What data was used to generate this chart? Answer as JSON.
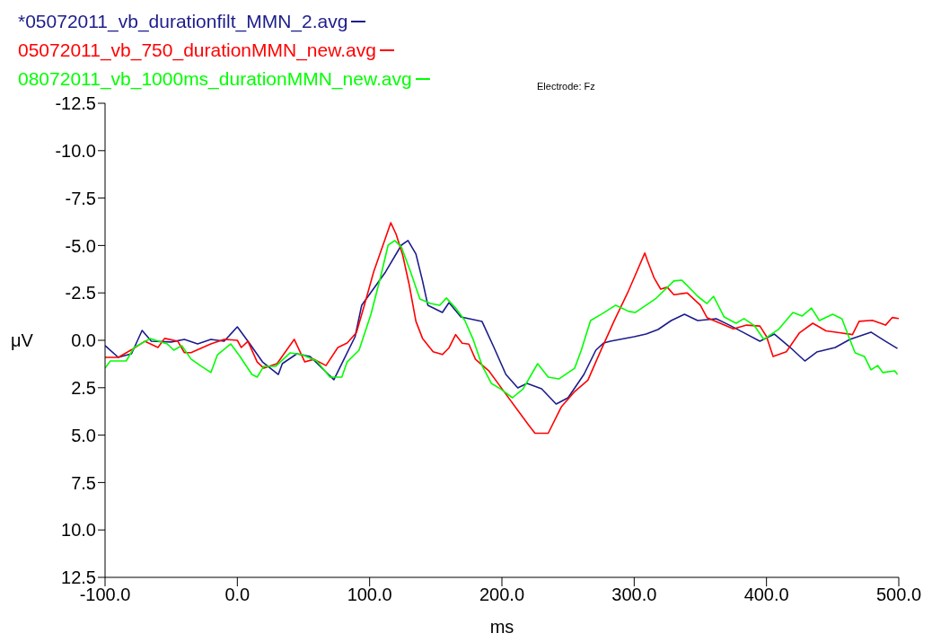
{
  "chart_data": {
    "type": "line",
    "xlabel": "ms",
    "ylabel": "μV",
    "legend": "top left",
    "marker": "none",
    "line_style": "solid",
    "grid": false,
    "annotations": [
      "Electrode: Fz"
    ],
    "xlim": [
      -100,
      500
    ],
    "xticks": [
      {
        "value": -100,
        "label": "-100.0"
      },
      {
        "value": 0,
        "label": "0.0"
      },
      {
        "value": 100,
        "label": "100.0"
      },
      {
        "value": 200,
        "label": "200.0"
      },
      {
        "value": 300,
        "label": "300.0"
      },
      {
        "value": 400,
        "label": "400.0"
      },
      {
        "value": 500,
        "label": "500.0"
      }
    ],
    "ylim": [
      12.5,
      -12.5
    ],
    "yticks": [
      -12.5,
      {
        "value": -10,
        "label": "-10.0"
      },
      -7.5,
      {
        "value": -5,
        "label": "-5.0"
      },
      -2.5,
      {
        "value": 0,
        "label": "0.0"
      },
      2.5,
      {
        "value": 5,
        "label": "5.0"
      },
      7.5,
      {
        "value": 10,
        "label": "10.0"
      },
      12.5
    ],
    "series": [
      {
        "name": "*05072011_vb_durationfilt_MMN_2.avg",
        "color": "#1c1c8c",
        "x": [
          -100,
          -90,
          -80,
          -72,
          -65,
          -50,
          -40,
          -30,
          -20,
          -10,
          0,
          9,
          19,
          31,
          34,
          45,
          55,
          64,
          73,
          79,
          89,
          94,
          112,
          124,
          129,
          135,
          140,
          144,
          155,
          160,
          169,
          185,
          194,
          203,
          212,
          219,
          230,
          241,
          250,
          262,
          271,
          277,
          282,
          300,
          309,
          318,
          328,
          338,
          348,
          362,
          372,
          382,
          395,
          406,
          418,
          429,
          438,
          452,
          463,
          479,
          490,
          499
        ],
        "values": [
          0.28,
          0.9,
          0.71,
          -0.52,
          0.05,
          0.09,
          -0.05,
          0.19,
          -0.05,
          0.05,
          -0.71,
          0.14,
          1.14,
          1.8,
          1.23,
          0.71,
          0.85,
          1.47,
          2.08,
          1.23,
          -0.19,
          -1.85,
          -3.6,
          -5.02,
          -5.26,
          -4.55,
          -3.13,
          -1.85,
          -1.47,
          -1.99,
          -1.23,
          -0.99,
          0.38,
          1.8,
          2.51,
          2.27,
          2.56,
          3.36,
          3.03,
          1.8,
          0.52,
          0.14,
          0.05,
          -0.19,
          -0.33,
          -0.57,
          -1.04,
          -1.37,
          -1.04,
          -1.14,
          -0.8,
          -0.43,
          0.05,
          -0.33,
          0.38,
          1.09,
          0.62,
          0.38,
          -0.05,
          -0.43,
          0.05,
          0.43
        ]
      },
      {
        "name": "05072011_vb_750_durationMMN_new.avg",
        "color": "#ff0000",
        "x": [
          -100,
          -90,
          -80,
          -70,
          -60,
          -55,
          -45,
          -40,
          -35,
          -20,
          -10,
          0,
          3,
          8,
          15,
          20,
          30,
          43,
          51,
          58,
          67,
          76,
          83,
          90,
          96,
          103,
          116,
          120,
          125,
          130,
          135,
          140,
          148,
          155,
          160,
          165,
          170,
          175,
          180,
          190,
          200,
          210,
          220,
          225,
          235,
          245,
          255,
          265,
          275,
          285,
          295,
          300,
          308,
          310,
          315,
          320,
          325,
          330,
          340,
          350,
          355,
          365,
          375,
          385,
          395,
          400,
          405,
          415,
          425,
          435,
          445,
          455,
          465,
          470,
          480,
          490,
          495,
          500
        ],
        "values": [
          0.9,
          0.9,
          0.5,
          0.05,
          0.38,
          -0.1,
          0.05,
          0.65,
          0.65,
          0.19,
          -0.05,
          0,
          0.38,
          0.05,
          1.14,
          1.47,
          1.23,
          -0.05,
          1.14,
          1,
          1.33,
          0.38,
          0.14,
          -0.4,
          -1.85,
          -3.6,
          -6.2,
          -5.6,
          -4.5,
          -2.9,
          -1,
          -0.1,
          0.6,
          0.75,
          0.4,
          -0.3,
          0.15,
          0.2,
          1,
          1.6,
          2.55,
          3.5,
          4.45,
          4.9,
          4.9,
          3.5,
          2.7,
          2.1,
          0.5,
          -1.05,
          -2.5,
          -3.3,
          -4.6,
          -4.2,
          -3.3,
          -2.7,
          -2.8,
          -2.4,
          -2.5,
          -1.85,
          -1.2,
          -0.9,
          -0.6,
          -0.8,
          -0.75,
          -0.2,
          0.85,
          0.6,
          -0.4,
          -0.9,
          -0.5,
          -0.4,
          -0.3,
          -1,
          -1.05,
          -0.8,
          -1.2,
          -1.15
        ]
      },
      {
        "name": "08072011_vb_1000ms_durationMMN_new.avg",
        "color": "#00ff00",
        "x": [
          -100,
          -96,
          -84,
          -78,
          -66,
          -53,
          -48,
          -42,
          -35,
          -28,
          -20,
          -15,
          -5,
          2,
          11,
          15,
          20,
          29,
          40,
          49,
          60,
          70,
          79,
          83,
          92,
          101,
          108,
          114,
          119,
          124,
          131,
          138,
          146,
          153,
          158,
          165,
          172,
          178,
          185,
          192,
          199,
          208,
          216,
          227,
          235,
          243,
          255,
          260,
          267,
          275,
          286,
          296,
          301,
          316,
          330,
          336,
          348,
          355,
          360,
          368,
          377,
          383,
          391,
          398,
          409,
          420,
          427,
          434,
          440,
          450,
          457,
          463,
          467,
          474,
          479,
          484,
          488,
          497,
          499
        ],
        "values": [
          1.47,
          1.09,
          1.09,
          0.38,
          -0.09,
          0.19,
          0.52,
          0.28,
          0.99,
          1.33,
          1.7,
          0.76,
          0.19,
          0.85,
          1.8,
          1.94,
          1.37,
          1.37,
          0.66,
          0.76,
          1.09,
          1.94,
          1.94,
          1.14,
          0.52,
          -1.37,
          -3.27,
          -5.02,
          -5.26,
          -4.92,
          -3.6,
          -2.18,
          -1.94,
          -1.85,
          -2.23,
          -1.7,
          -1.04,
          -0.09,
          1.33,
          2.27,
          2.56,
          3.03,
          2.56,
          1.23,
          1.94,
          2.04,
          1.47,
          0.52,
          -1.04,
          -1.37,
          -1.85,
          -1.52,
          -1.47,
          -2.18,
          -3.13,
          -3.17,
          -2.32,
          -1.94,
          -2.32,
          -1.23,
          -0.9,
          -1.14,
          -0.76,
          -0.05,
          -0.57,
          -1.47,
          -1.28,
          -1.7,
          -1.04,
          -1.37,
          -1.14,
          -0.05,
          0.66,
          0.85,
          1.56,
          1.33,
          1.7,
          1.61,
          1.8
        ]
      }
    ]
  }
}
